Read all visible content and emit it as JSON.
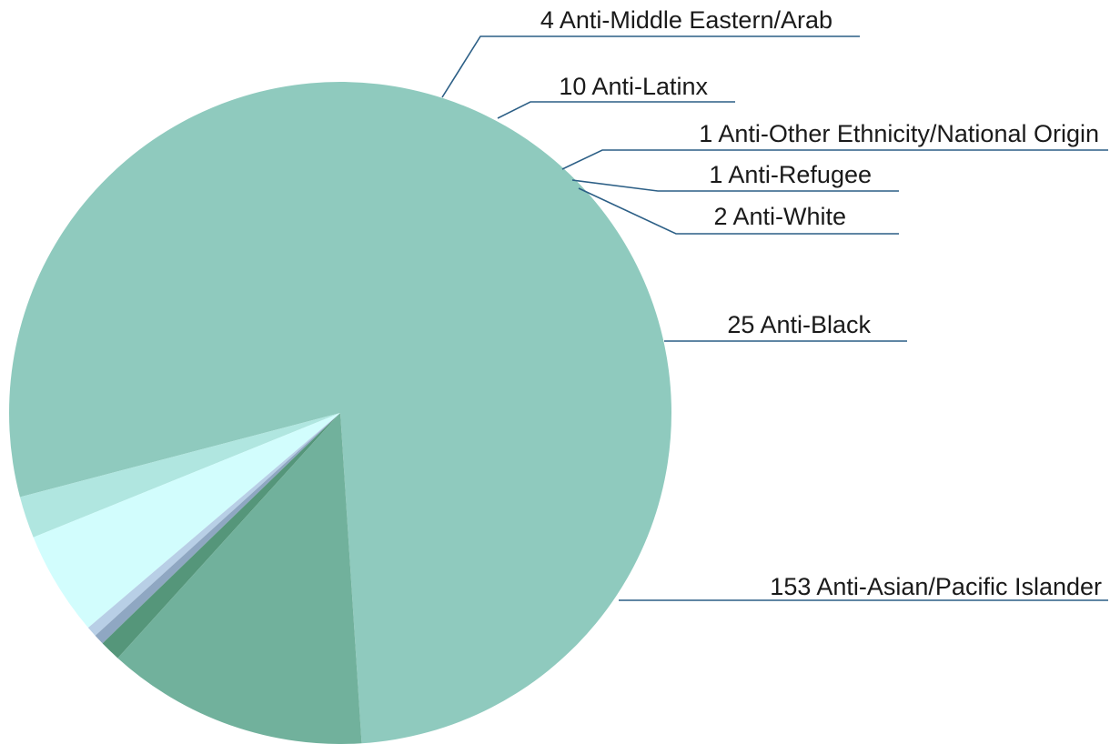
{
  "chart_data": {
    "type": "pie",
    "slices": [
      {
        "label": "153 Anti-Asian/Pacific Islander",
        "value": 153,
        "color": "#8fcabe"
      },
      {
        "label": "4 Anti-Middle Eastern/Arab",
        "value": 4,
        "color": "#b0e6e0"
      },
      {
        "label": "10 Anti-Latinx",
        "value": 10,
        "color": "#d2fdfd"
      },
      {
        "label": "1 Anti-Other Ethnicity/National Origin",
        "value": 1,
        "color": "#b8cfe6"
      },
      {
        "label": "1 Anti-Refugee",
        "value": 1,
        "color": "#8fa7c2"
      },
      {
        "label": "2 Anti-White",
        "value": 2,
        "color": "#55967a"
      },
      {
        "label": "25 Anti-Black",
        "value": 25,
        "color": "#71b19c"
      }
    ]
  }
}
